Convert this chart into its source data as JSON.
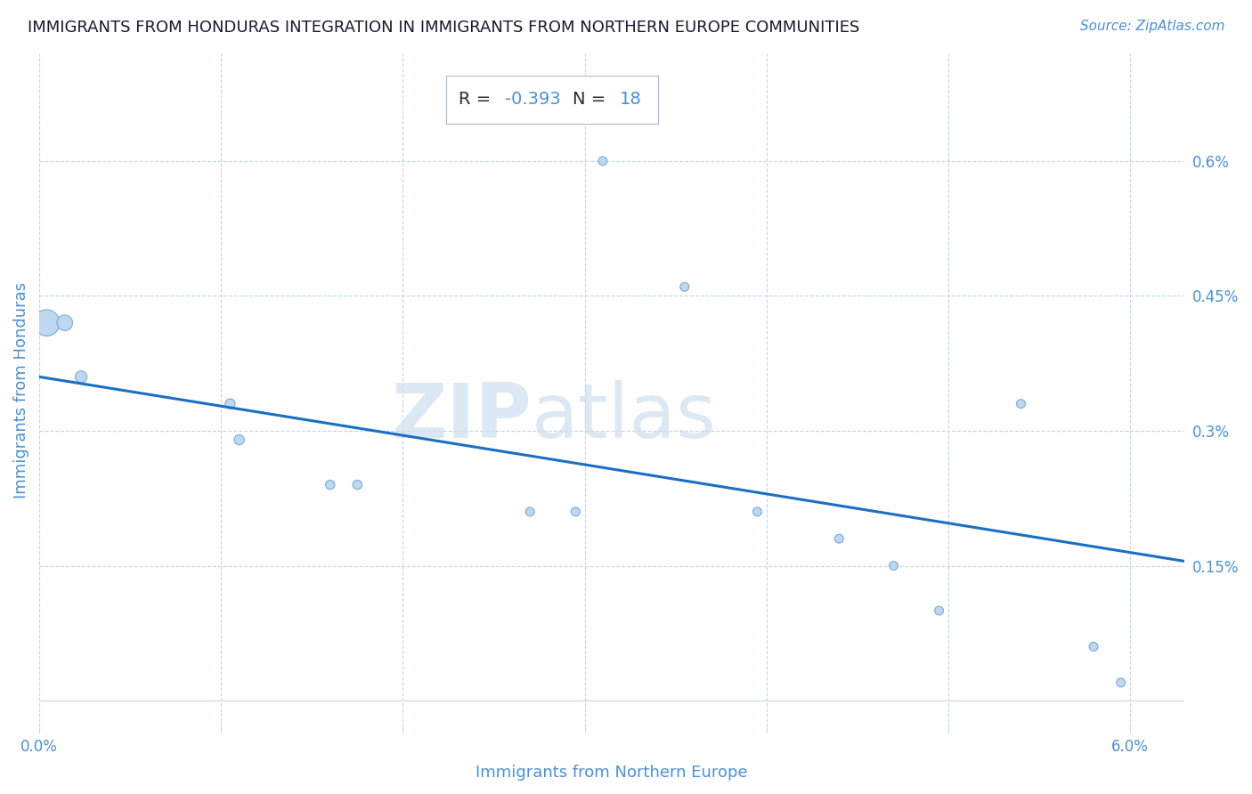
{
  "title": "IMMIGRANTS FROM HONDURAS INTEGRATION IN IMMIGRANTS FROM NORTHERN EUROPE COMMUNITIES",
  "source": "Source: ZipAtlas.com",
  "xlabel": "Immigrants from Northern Europe",
  "ylabel": "Immigrants from Honduras",
  "R": -0.393,
  "N": 18,
  "xlim": [
    0.0,
    0.063
  ],
  "ylim": [
    -0.0003,
    0.0072
  ],
  "xticks": [
    0.0,
    0.01,
    0.02,
    0.03,
    0.04,
    0.05,
    0.06
  ],
  "xtick_labels": [
    "0.0%",
    "",
    "",
    "",
    "",
    "",
    "6.0%"
  ],
  "yticks_right": [
    0.0015,
    0.003,
    0.0045,
    0.006
  ],
  "ytick_labels_right": [
    "0.15%",
    "0.3%",
    "0.45%",
    "0.6%"
  ],
  "scatter_x": [
    0.0004,
    0.0014,
    0.0023,
    0.0105,
    0.011,
    0.016,
    0.0175,
    0.027,
    0.0295,
    0.031,
    0.0355,
    0.0395,
    0.044,
    0.047,
    0.0495,
    0.054,
    0.058,
    0.0595
  ],
  "scatter_y": [
    0.0042,
    0.0042,
    0.0036,
    0.0033,
    0.0029,
    0.0024,
    0.0024,
    0.0021,
    0.0021,
    0.006,
    0.0046,
    0.0021,
    0.0018,
    0.0015,
    0.001,
    0.0033,
    0.0006,
    0.0002
  ],
  "scatter_sizes": [
    450,
    160,
    90,
    65,
    65,
    55,
    55,
    50,
    50,
    50,
    50,
    50,
    50,
    50,
    50,
    50,
    50,
    50
  ],
  "dot_color": "#b8d4f0",
  "dot_edge_color": "#7aaad4",
  "line_color": "#1a6fc4",
  "annotation_color": "#4a90d9",
  "watermark_zip": "ZIP",
  "watermark_atlas": "atlas",
  "background_color": "#ffffff",
  "grid_color": "#c8d4e8",
  "title_color": "#1a1a2e",
  "line_y_start": 0.0036,
  "line_y_end": 0.00155
}
